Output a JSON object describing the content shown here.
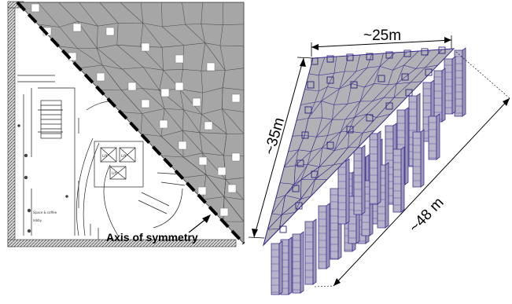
{
  "floor_plan": {
    "axis_label": "Axis of symmetry",
    "room_labels": [
      "Space & coffee",
      "lobby",
      "Lift",
      "Lift",
      "Lift"
    ],
    "colors": {
      "shade": "#a6a6a6",
      "mesh": "#555555",
      "axis": "#000000"
    }
  },
  "model_3d": {
    "dim_top": "~25m",
    "dim_left": "~35m",
    "dim_right": "~48 m",
    "colors": {
      "shade": "#b2b2b6",
      "mesh": "#3a2f8f"
    }
  }
}
